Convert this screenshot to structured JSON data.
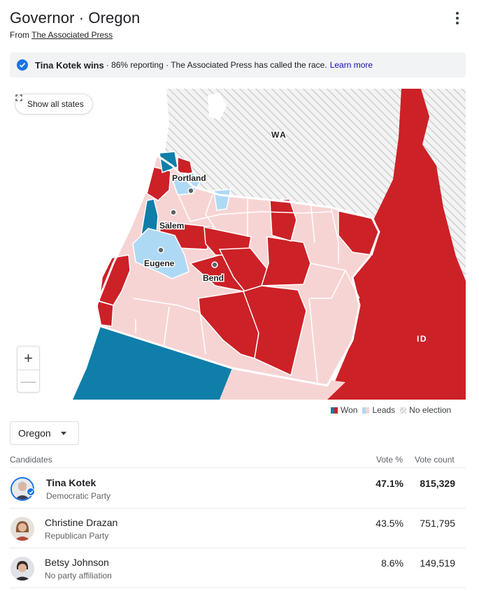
{
  "header": {
    "title": "Governor · Oregon",
    "source_prefix": "From ",
    "source_link": "The Associated Press"
  },
  "banner": {
    "winner": "Tina Kotek wins",
    "details": "· 86% reporting · The Associated Press has called the race.",
    "learn_more": "Learn more"
  },
  "map": {
    "show_all_label": "Show all states",
    "state_labels": {
      "wa": "WA",
      "id": "ID"
    },
    "cities": {
      "portland": "Portland",
      "salem": "Salem",
      "eugene": "Eugene",
      "bend": "Bend"
    },
    "zoom_in": "+",
    "zoom_out": "—"
  },
  "legend": {
    "won": "Won",
    "leads": "Leads",
    "no_election": "No election"
  },
  "colors": {
    "dem_won": "#0f7ea8",
    "rep_won": "#cc2127",
    "dem_leads": "#aed9f5",
    "rep_leads": "#f7d4d4",
    "accent": "#1a73e8"
  },
  "selector": {
    "value": "Oregon"
  },
  "table": {
    "headers": {
      "candidates": "Candidates",
      "vote_pct": "Vote %",
      "vote_count": "Vote count"
    },
    "rows": [
      {
        "name": "Tina Kotek",
        "party": "Democratic Party",
        "pct": "47.1%",
        "count": "815,329"
      },
      {
        "name": "Christine Drazan",
        "party": "Republican Party",
        "pct": "43.5%",
        "count": "751,795"
      },
      {
        "name": "Betsy Johnson",
        "party": "No party affiliation",
        "pct": "8.6%",
        "count": "149,519"
      }
    ]
  }
}
